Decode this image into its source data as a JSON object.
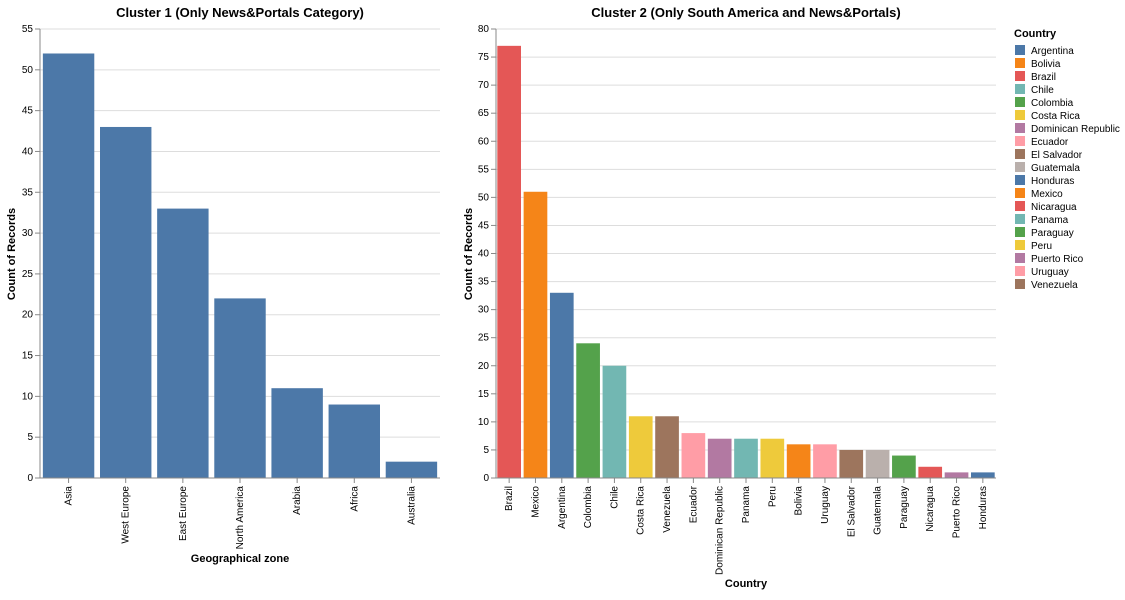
{
  "chart_data": [
    {
      "type": "bar",
      "title": "Cluster 1 (Only News&Portals Category)",
      "xlabel": "Geographical zone",
      "ylabel": "Count of Records",
      "categories": [
        "Asia",
        "West Europe",
        "East Europe",
        "North America",
        "Arabia",
        "Africa",
        "Australia"
      ],
      "values": [
        52,
        43,
        33,
        22,
        11,
        9,
        2
      ],
      "color": "#4c78a8",
      "ylim": [
        0,
        55
      ],
      "yticks": [
        0,
        5,
        10,
        15,
        20,
        25,
        30,
        35,
        40,
        45,
        50,
        55
      ],
      "grid": true
    },
    {
      "type": "bar",
      "title": "Cluster 2 (Only South America and News&Portals)",
      "xlabel": "Country",
      "ylabel": "Count of Records",
      "categories": [
        "Brazil",
        "Mexico",
        "Argentina",
        "Colombia",
        "Chile",
        "Costa Rica",
        "Venezuela",
        "Ecuador",
        "Dominican Republic",
        "Panama",
        "Peru",
        "Bolivia",
        "Uruguay",
        "El Salvador",
        "Guatemala",
        "Paraguay",
        "Nicaragua",
        "Puerto Rico",
        "Honduras"
      ],
      "values": [
        77,
        51,
        33,
        24,
        20,
        11,
        11,
        8,
        7,
        7,
        7,
        6,
        6,
        5,
        5,
        4,
        2,
        1,
        1
      ],
      "ylim": [
        0,
        80
      ],
      "yticks": [
        0,
        5,
        10,
        15,
        20,
        25,
        30,
        35,
        40,
        45,
        50,
        55,
        60,
        65,
        70,
        75,
        80
      ],
      "grid": true,
      "legend": {
        "title": "Country",
        "placement": "right",
        "entries": [
          {
            "label": "Argentina",
            "color": "#4c78a8"
          },
          {
            "label": "Bolivia",
            "color": "#f58518"
          },
          {
            "label": "Brazil",
            "color": "#e45756"
          },
          {
            "label": "Chile",
            "color": "#72b7b2"
          },
          {
            "label": "Colombia",
            "color": "#54a24b"
          },
          {
            "label": "Costa Rica",
            "color": "#eeca3b"
          },
          {
            "label": "Dominican Republic",
            "color": "#b279a2"
          },
          {
            "label": "Ecuador",
            "color": "#ff9da6"
          },
          {
            "label": "El Salvador",
            "color": "#9d755d"
          },
          {
            "label": "Guatemala",
            "color": "#bab0ac"
          },
          {
            "label": "Honduras",
            "color": "#4c78a8"
          },
          {
            "label": "Mexico",
            "color": "#f58518"
          },
          {
            "label": "Nicaragua",
            "color": "#e45756"
          },
          {
            "label": "Panama",
            "color": "#72b7b2"
          },
          {
            "label": "Paraguay",
            "color": "#54a24b"
          },
          {
            "label": "Peru",
            "color": "#eeca3b"
          },
          {
            "label": "Puerto Rico",
            "color": "#b279a2"
          },
          {
            "label": "Uruguay",
            "color": "#ff9da6"
          },
          {
            "label": "Venezuela",
            "color": "#9d755d"
          }
        ]
      }
    }
  ]
}
